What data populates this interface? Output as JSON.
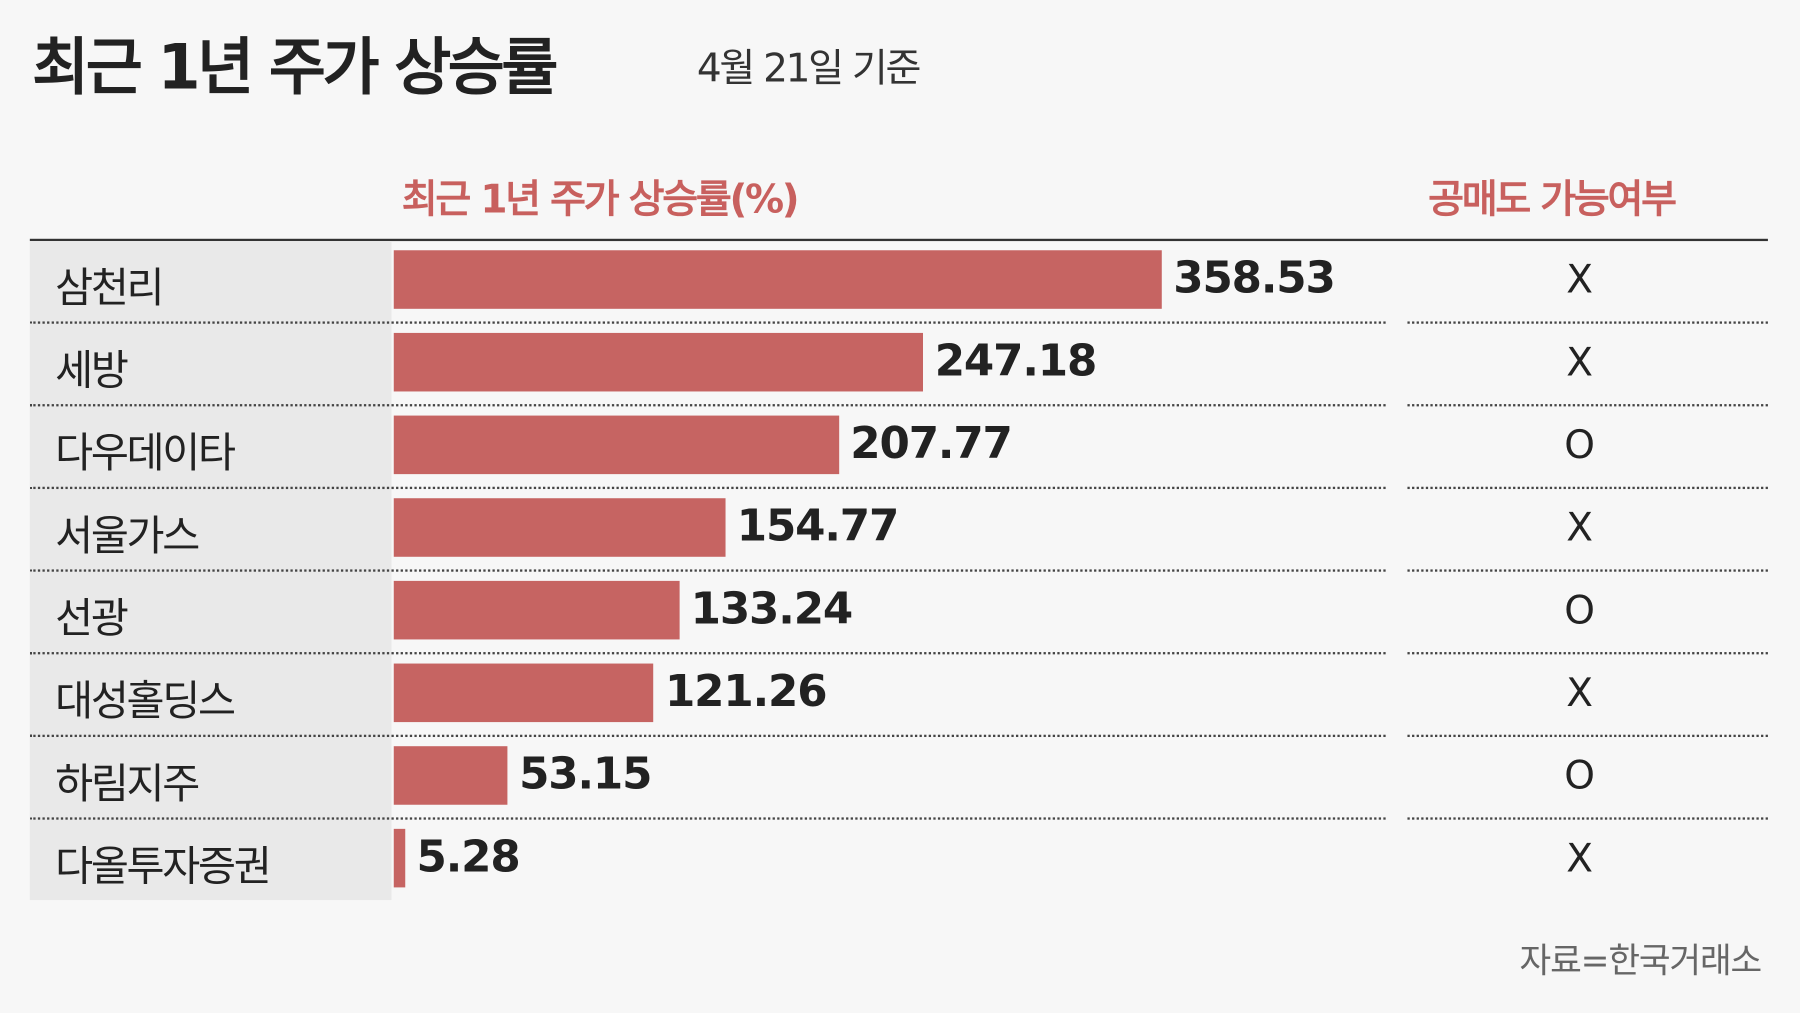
{
  "title": "최근 1년 주가 상승률",
  "subtitle": "4월 21일 기준",
  "column_headers": {
    "rise": "최근 1년 주가 상승률(%)",
    "short_selling": "공매도 가능여부"
  },
  "source": "자료=한국거래소",
  "colors": {
    "bar": "#c66462",
    "header": "#c8605e",
    "label_bg": "#e9e9e9"
  },
  "chart_data": {
    "type": "bar",
    "orientation": "horizontal",
    "title": "최근 1년 주가 상승률",
    "subtitle": "4월 21일 기준",
    "ylabel": "최근 1년 주가 상승률(%)",
    "categories": [
      "삼천리",
      "세방",
      "다우데이타",
      "서울가스",
      "선광",
      "대성홀딩스",
      "하림지주",
      "다올투자증권"
    ],
    "values": [
      358.53,
      247.18,
      207.77,
      154.77,
      133.24,
      121.26,
      53.15,
      5.28
    ],
    "value_labels": [
      "358.53",
      "247.18",
      "207.77",
      "154.77",
      "133.24",
      "121.26",
      "53.15",
      "5.28"
    ],
    "short_selling": [
      "X",
      "X",
      "O",
      "X",
      "O",
      "X",
      "O",
      "X"
    ],
    "xlim": [
      0,
      358.53
    ]
  }
}
